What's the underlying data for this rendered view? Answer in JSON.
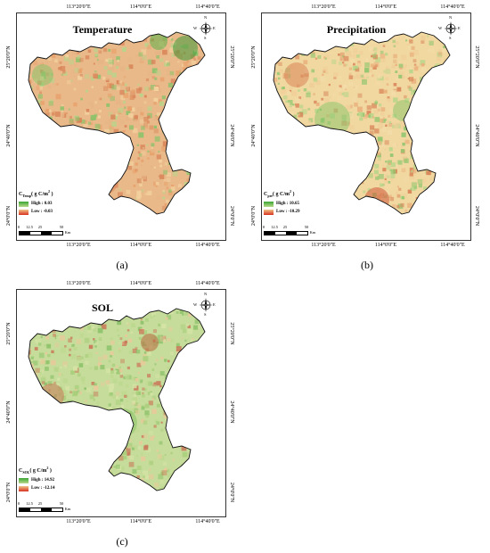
{
  "panels": [
    {
      "id": "a",
      "title": "Temperature",
      "caption": "(a)",
      "top_ticks": [
        "113°20'0\"E",
        "114°0'0\"E",
        "114°40'0\"E"
      ],
      "bottom_ticks": [
        "113°20'0\"E",
        "114°0'0\"E",
        "114°40'0\"E"
      ],
      "left_ticks": [
        "25°20'0\"N",
        "24°40'0\"N",
        "24°0'0\"N"
      ],
      "right_ticks": [
        "25°20'0\"N",
        "24°40'0\"N",
        "24°0'0\"N"
      ],
      "legend_title": "C",
      "legend_sub": "Temp",
      "legend_unit": "( g C/m",
      "legend_unit_sup": "2",
      "legend_unit_end": " )",
      "legend_high": "High : 0.03",
      "legend_low": "Low : -0.03",
      "tone": "warm"
    },
    {
      "id": "b",
      "title": "Precipitation",
      "caption": "(b)",
      "top_ticks": [
        "113°20'0\"E",
        "114°0'0\"E",
        "114°40'0\"E"
      ],
      "bottom_ticks": [
        "113°20'0\"E",
        "114°0'0\"E",
        "114°40'0\"E"
      ],
      "left_ticks": [
        "25°20'0\"N",
        "24°40'0\"N",
        "24°0'0\"N"
      ],
      "right_ticks": [
        "25°20'0\"N",
        "24°40'0\"N",
        "24°0'0\"N"
      ],
      "legend_title": "C",
      "legend_sub": "pre",
      "legend_unit": "( g C/m",
      "legend_unit_sup": "2",
      "legend_unit_end": " )",
      "legend_high": "High : 10.65",
      "legend_low": "Low : -10.29",
      "tone": "mixed"
    },
    {
      "id": "c",
      "title": "SOL",
      "caption": "(c)",
      "top_ticks": [
        "113°20'0\"E",
        "114°0'0\"E",
        "114°40'0\"E"
      ],
      "bottom_ticks": [
        "113°20'0\"E",
        "114°0'0\"E",
        "114°40'0\"E"
      ],
      "left_ticks": [
        "25°20'0\"N",
        "24°40'0\"N",
        "24°0'0\"N"
      ],
      "right_ticks": [
        "25°20'0\"N",
        "24°40'0\"N",
        "24°0'0\"N"
      ],
      "legend_title": "C",
      "legend_sub": "SOL",
      "legend_unit": "( g C/m",
      "legend_unit_sup": "2",
      "legend_unit_end": " )",
      "legend_high": "High : 14.92",
      "legend_low": "Low : -12.14",
      "tone": "green"
    }
  ],
  "compass": {
    "n": "N",
    "s": "S",
    "e": "E",
    "w": "W"
  },
  "scale": {
    "labels": [
      "0",
      "12.5",
      "25",
      "50"
    ],
    "unit": "Km"
  },
  "colors": {
    "high": "#3aa535",
    "low": "#d7301f",
    "mid": "#f1d7a0",
    "warm": "#e9b98a",
    "green": "#c6dc9a"
  }
}
